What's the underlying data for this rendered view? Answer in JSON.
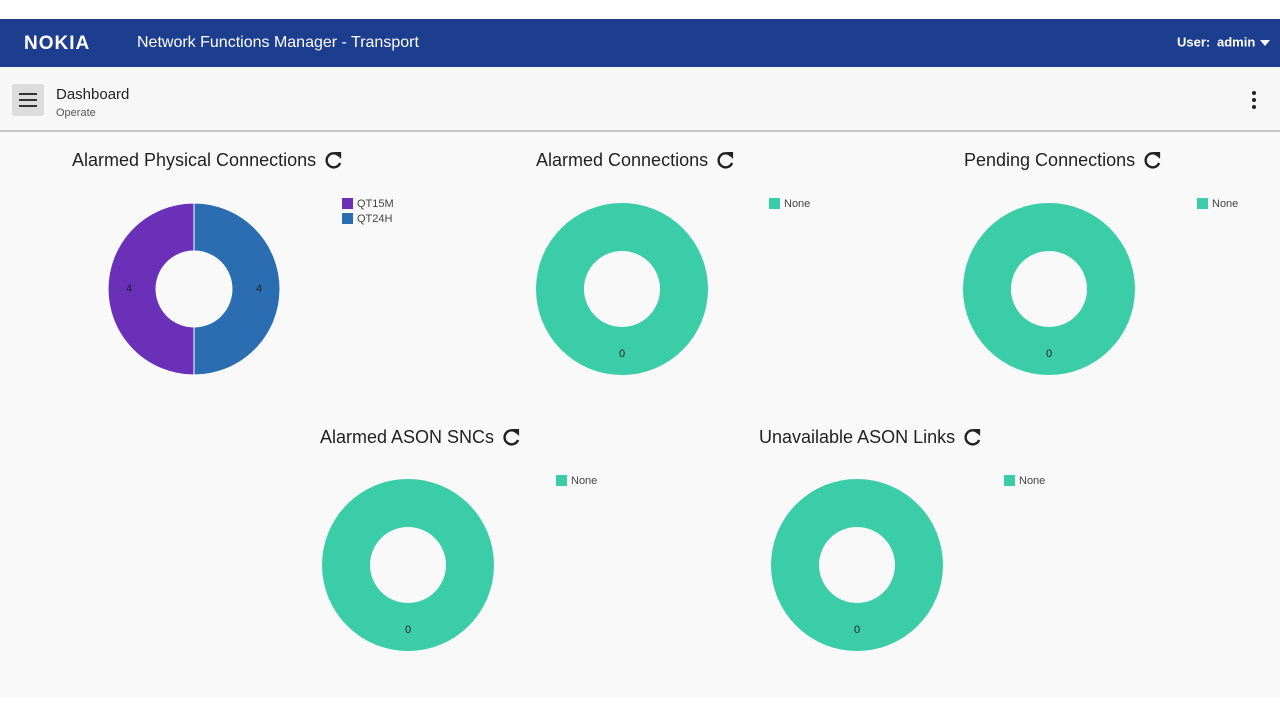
{
  "header": {
    "brand": "NOKIA",
    "app_title": "Network Functions Manager - Transport",
    "user_label": "User:",
    "user_name": "admin"
  },
  "toolbar": {
    "title": "Dashboard",
    "subtitle": "Operate"
  },
  "chart_data": [
    {
      "type": "pie",
      "donut": true,
      "title": "Alarmed Physical Connections",
      "categories": [
        "QT15M",
        "QT24H"
      ],
      "values": [
        4,
        4
      ],
      "colors": [
        "#6a30b8",
        "#2a6db0"
      ]
    },
    {
      "type": "pie",
      "donut": true,
      "title": "Alarmed Connections",
      "categories": [
        "None"
      ],
      "values": [
        0
      ],
      "colors": [
        "#3bcca8"
      ]
    },
    {
      "type": "pie",
      "donut": true,
      "title": "Pending Connections",
      "categories": [
        "None"
      ],
      "values": [
        0
      ],
      "colors": [
        "#3bcca8"
      ]
    },
    {
      "type": "pie",
      "donut": true,
      "title": "Alarmed ASON SNCs",
      "categories": [
        "None"
      ],
      "values": [
        0
      ],
      "colors": [
        "#3bcca8"
      ]
    },
    {
      "type": "pie",
      "donut": true,
      "title": "Unavailable ASON Links",
      "categories": [
        "None"
      ],
      "values": [
        0
      ],
      "colors": [
        "#3bcca8"
      ]
    }
  ]
}
